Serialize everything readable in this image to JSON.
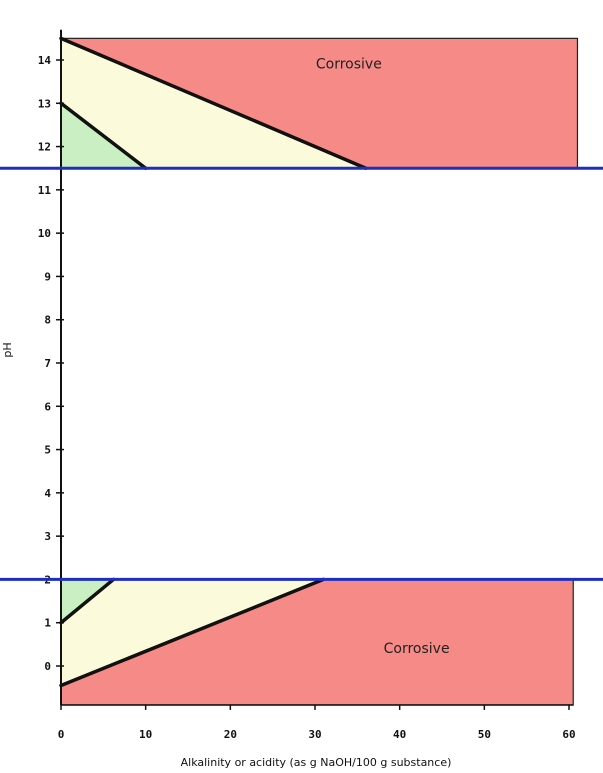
{
  "chart_data": {
    "type": "area",
    "xlabel": "Alkalinity or acidity (as g NaOH/100 g substance)",
    "ylabel": "pH",
    "xlim": [
      0,
      60
    ],
    "ylim": [
      -0.9,
      14.7
    ],
    "x_ticks": [
      0,
      10,
      20,
      30,
      40,
      50,
      60
    ],
    "x_tick_labels": [
      "0",
      "10",
      "20",
      "30",
      "40",
      "50",
      "60"
    ],
    "y_ticks": [
      0,
      1,
      2,
      3,
      4,
      5,
      6,
      7,
      8,
      9,
      10,
      11,
      12,
      13,
      14
    ],
    "y_tick_labels": [
      "0",
      "1",
      "2",
      "3",
      "4",
      "5",
      "6",
      "7",
      "8",
      "9",
      "10",
      "11",
      "12",
      "13",
      "14"
    ],
    "thresholds": [
      {
        "y": 11.5,
        "color": "#1e2fbf"
      },
      {
        "y": 2.0,
        "color": "#1e2fbf"
      }
    ],
    "regions": [
      {
        "label": "Corrosive",
        "zone": "upper",
        "color": "#f58a87",
        "polygon": [
          [
            0,
            14.5
          ],
          [
            61,
            14.5
          ],
          [
            61,
            11.5
          ],
          [
            36,
            11.5
          ]
        ],
        "label_at": [
          34,
          13.8
        ]
      },
      {
        "zone": "upper-mid",
        "color": "#fbfbdc",
        "polygon": [
          [
            0,
            14.5
          ],
          [
            36,
            11.5
          ],
          [
            10,
            11.5
          ],
          [
            0,
            13
          ]
        ]
      },
      {
        "zone": "upper-low",
        "color": "#c9efc2",
        "polygon": [
          [
            0,
            13
          ],
          [
            10,
            11.5
          ],
          [
            0,
            11.5
          ]
        ]
      },
      {
        "label": "Corrosive",
        "zone": "lower",
        "color": "#f58a87",
        "polygon": [
          [
            0,
            -0.45
          ],
          [
            31,
            2
          ],
          [
            60.5,
            2
          ],
          [
            60.5,
            -0.9
          ],
          [
            0,
            -0.9
          ]
        ],
        "label_at": [
          42,
          0.3
        ]
      },
      {
        "zone": "lower-mid",
        "color": "#fbfbdc",
        "polygon": [
          [
            0,
            1
          ],
          [
            6.2,
            2
          ],
          [
            31,
            2
          ],
          [
            0,
            -0.45
          ]
        ]
      },
      {
        "zone": "lower-low",
        "color": "#c9efc2",
        "polygon": [
          [
            0,
            2
          ],
          [
            6.2,
            2
          ],
          [
            0,
            1
          ]
        ]
      }
    ],
    "boundary_lines": [
      {
        "from": [
          0,
          14.5
        ],
        "to": [
          36,
          11.5
        ]
      },
      {
        "from": [
          0,
          13
        ],
        "to": [
          10,
          11.5
        ]
      },
      {
        "from": [
          0,
          1
        ],
        "to": [
          6.2,
          2
        ]
      },
      {
        "from": [
          0,
          -0.45
        ],
        "to": [
          31,
          2
        ]
      }
    ]
  }
}
